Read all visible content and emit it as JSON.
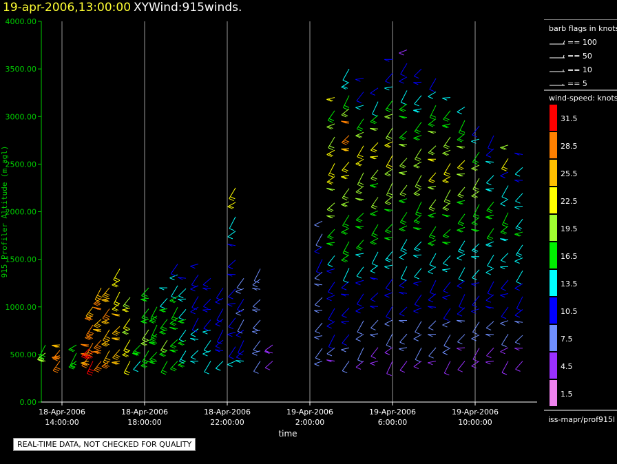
{
  "header": {
    "datetime": "19-apr-2006,13:00:00",
    "product": "XYWind:915winds."
  },
  "footer": {
    "quality_note": "REAL-TIME DATA, NOT CHECKED FOR QUALITY",
    "source": "iss-mapr/prof915l"
  },
  "legend": {
    "barb_title": "barb flags in knots",
    "barb_flags": [
      "== 100",
      "== 50",
      "== 10",
      "== 5"
    ],
    "speed_title": "wind-speed: knots",
    "speed_bins": [
      {
        "label": "31.5",
        "color": "#ff0000"
      },
      {
        "label": "28.5",
        "color": "#ff8000"
      },
      {
        "label": "25.5",
        "color": "#ffbf00"
      },
      {
        "label": "22.5",
        "color": "#ffff00"
      },
      {
        "label": "19.5",
        "color": "#a0ff30"
      },
      {
        "label": "16.5",
        "color": "#00ee00"
      },
      {
        "label": "13.5",
        "color": "#00ffff"
      },
      {
        "label": "10.5",
        "color": "#0000ff"
      },
      {
        "label": "7.5",
        "color": "#6f8fff"
      },
      {
        "label": "4.5",
        "color": "#9a30ff"
      },
      {
        "label": "1.5",
        "color": "#ee82ee"
      }
    ]
  },
  "chart_data": {
    "type": "scatter",
    "ylabel": "915 Profiler Altitude (m agl)",
    "xlabel": "time",
    "ylim": [
      0,
      4000
    ],
    "yticks": [
      "0.00",
      "500.00",
      "1000.00",
      "1500.00",
      "2000.00",
      "2500.00",
      "3000.00",
      "3500.00",
      "4000.00"
    ],
    "xticks": [
      {
        "date": "18-Apr-2006",
        "time": "14:00:00",
        "hours": 14
      },
      {
        "date": "18-Apr-2006",
        "time": "18:00:00",
        "hours": 18
      },
      {
        "date": "18-Apr-2006",
        "time": "22:00:00",
        "hours": 22
      },
      {
        "date": "19-Apr-2006",
        "time": "2:00:00",
        "hours": 26
      },
      {
        "date": "19-Apr-2006",
        "time": "6:00:00",
        "hours": 30
      },
      {
        "date": "19-Apr-2006",
        "time": "10:00:00",
        "hours": 34
      }
    ],
    "xlim_hours": [
      13.0,
      37.0
    ],
    "grid": "vertical",
    "axis_color": "#00cc00",
    "profiles": [
      {
        "t": 13.2,
        "top": 600,
        "speeds": [
          19,
          19,
          16
        ]
      },
      {
        "t": 13.9,
        "top": 600,
        "speeds": [
          29,
          30,
          28,
          26
        ]
      },
      {
        "t": 14.7,
        "top": 600,
        "speeds": [
          16,
          17,
          16
        ]
      },
      {
        "t": 15.3,
        "top": 600,
        "speeds": [
          25,
          28,
          30,
          31,
          30
        ]
      },
      {
        "t": 15.5,
        "top": 1000,
        "speeds": [
          31,
          31,
          30,
          28,
          28,
          28,
          26
        ]
      },
      {
        "t": 15.9,
        "top": 1200,
        "speeds": [
          29,
          29,
          28,
          27,
          26,
          28,
          28,
          27
        ]
      },
      {
        "t": 16.3,
        "top": 1200,
        "speeds": [
          28,
          27,
          27,
          26,
          27,
          28,
          26,
          26
        ]
      },
      {
        "t": 16.8,
        "top": 1400,
        "speeds": [
          26,
          25,
          27,
          26,
          25,
          24,
          23,
          23,
          22
        ]
      },
      {
        "t": 17.3,
        "top": 1100,
        "speeds": [
          23,
          22,
          23,
          20,
          22,
          22,
          21
        ]
      },
      {
        "t": 17.8,
        "top": 600,
        "speeds": [
          13,
          16,
          17
        ]
      },
      {
        "t": 18.2,
        "top": 1200,
        "speeds": [
          16,
          18,
          19,
          20,
          18,
          17,
          16,
          16
        ]
      },
      {
        "t": 18.6,
        "top": 1000,
        "speeds": [
          17,
          17,
          16,
          17,
          16,
          16,
          16
        ]
      },
      {
        "t": 19.1,
        "top": 1200,
        "speeds": [
          16,
          17,
          19,
          16,
          16,
          17,
          14,
          14
        ]
      },
      {
        "t": 19.6,
        "top": 1450,
        "speeds": [
          16,
          17,
          16,
          18,
          17,
          16,
          16,
          14,
          14,
          12
        ]
      },
      {
        "t": 20.0,
        "top": 1300,
        "speeds": [
          16,
          15,
          16,
          14,
          16,
          13,
          14,
          13,
          12
        ]
      },
      {
        "t": 20.6,
        "top": 1450,
        "speeds": [
          14,
          13,
          13,
          14,
          12,
          12,
          11,
          10,
          10,
          10
        ]
      },
      {
        "t": 21.2,
        "top": 1300,
        "speeds": [
          13,
          14,
          13,
          13,
          12,
          11,
          10,
          11,
          11
        ]
      },
      {
        "t": 21.8,
        "top": 1200,
        "speeds": [
          13,
          12,
          12,
          11,
          10,
          11,
          10,
          10
        ]
      },
      {
        "t": 22.4,
        "top": 2250,
        "speeds": [
          13,
          12,
          11,
          10,
          10,
          10,
          11,
          12,
          12,
          13,
          14,
          22,
          22
        ]
      },
      {
        "t": 22.8,
        "top": 1300,
        "speeds": [
          13,
          12,
          10,
          11,
          9,
          9,
          10,
          9,
          8
        ]
      },
      {
        "t": 23.6,
        "top": 1400,
        "speeds": [
          8,
          8,
          9,
          8,
          9,
          8,
          7,
          7,
          8,
          7
        ]
      },
      {
        "t": 24.2,
        "top": 600,
        "speeds": [
          5,
          5,
          6
        ]
      },
      {
        "t": 26.6,
        "top": 1900,
        "speeds": [
          7,
          7,
          8,
          8,
          9,
          9,
          8,
          9,
          10,
          10,
          8,
          8
        ]
      },
      {
        "t": 27.2,
        "top": 3200,
        "speeds": [
          6,
          7,
          10,
          10,
          10,
          10,
          11,
          12,
          13,
          16,
          17,
          19,
          20,
          19,
          22,
          23,
          23,
          20,
          19,
          18,
          22
        ]
      },
      {
        "t": 27.9,
        "top": 3500,
        "speeds": [
          7,
          8,
          10,
          10,
          11,
          12,
          12,
          14,
          16,
          16,
          17,
          18,
          20,
          19,
          22,
          23,
          25,
          28,
          29,
          19,
          16,
          15,
          14
        ]
      },
      {
        "t": 28.6,
        "top": 3400,
        "speeds": [
          6,
          7,
          8,
          9,
          10,
          10,
          12,
          13,
          14,
          16,
          17,
          18,
          19,
          20,
          20,
          22,
          22,
          19,
          16,
          13,
          12,
          11
        ]
      },
      {
        "t": 29.3,
        "top": 3300,
        "speeds": [
          5,
          6,
          8,
          9,
          10,
          11,
          12,
          13,
          14,
          16,
          17,
          17,
          19,
          18,
          20,
          22,
          23,
          19,
          16,
          13,
          12
        ]
      },
      {
        "t": 30.0,
        "top": 3600,
        "speeds": [
          5,
          6,
          7,
          9,
          10,
          11,
          12,
          13,
          15,
          16,
          17,
          18,
          19,
          20,
          21,
          22,
          23,
          20,
          19,
          17,
          13,
          12,
          10
        ]
      },
      {
        "t": 30.7,
        "top": 3700,
        "speeds": [
          6,
          7,
          8,
          9,
          10,
          11,
          12,
          13,
          14,
          15,
          16,
          17,
          18,
          19,
          20,
          21,
          19,
          18,
          17,
          16,
          13,
          11,
          10,
          5
        ]
      },
      {
        "t": 31.4,
        "top": 3500,
        "speeds": [
          6,
          7,
          8,
          9,
          10,
          11,
          12,
          13,
          14,
          15,
          16,
          17,
          18,
          19,
          20,
          21,
          19,
          18,
          17,
          15,
          13,
          11,
          10
        ]
      },
      {
        "t": 32.1,
        "top": 3400,
        "speeds": [
          6,
          7,
          8,
          9,
          10,
          11,
          12,
          13,
          14,
          16,
          17,
          18,
          19,
          20,
          22,
          23,
          20,
          19,
          18,
          16,
          13,
          11
        ]
      },
      {
        "t": 32.8,
        "top": 3200,
        "speeds": [
          6,
          7,
          8,
          9,
          10,
          11,
          12,
          13,
          14,
          16,
          17,
          18,
          19,
          20,
          22,
          24,
          20,
          19,
          18,
          16,
          13
        ]
      },
      {
        "t": 33.5,
        "top": 3100,
        "speeds": [
          5,
          6,
          8,
          9,
          10,
          11,
          12,
          13,
          14,
          15,
          16,
          17,
          18,
          19,
          20,
          22,
          19,
          18,
          17,
          13
        ]
      },
      {
        "t": 34.2,
        "top": 2900,
        "speeds": [
          5,
          6,
          8,
          9,
          10,
          11,
          12,
          13,
          14,
          15,
          16,
          17,
          18,
          19,
          20,
          19,
          17,
          13,
          11
        ]
      },
      {
        "t": 34.9,
        "top": 2800,
        "speeds": [
          5,
          6,
          7,
          9,
          10,
          11,
          12,
          13,
          14,
          15,
          16,
          17,
          16,
          15,
          14,
          13,
          12,
          11
        ]
      },
      {
        "t": 35.6,
        "top": 2700,
        "speeds": [
          5,
          5,
          7,
          9,
          10,
          11,
          12,
          13,
          14,
          15,
          16,
          16,
          14,
          13,
          12,
          22,
          20
        ]
      },
      {
        "t": 36.3,
        "top": 2600,
        "speeds": [
          4,
          5,
          7,
          9,
          10,
          11,
          12,
          13,
          14,
          15,
          16,
          15,
          14,
          13,
          12,
          13,
          12
        ]
      }
    ]
  }
}
